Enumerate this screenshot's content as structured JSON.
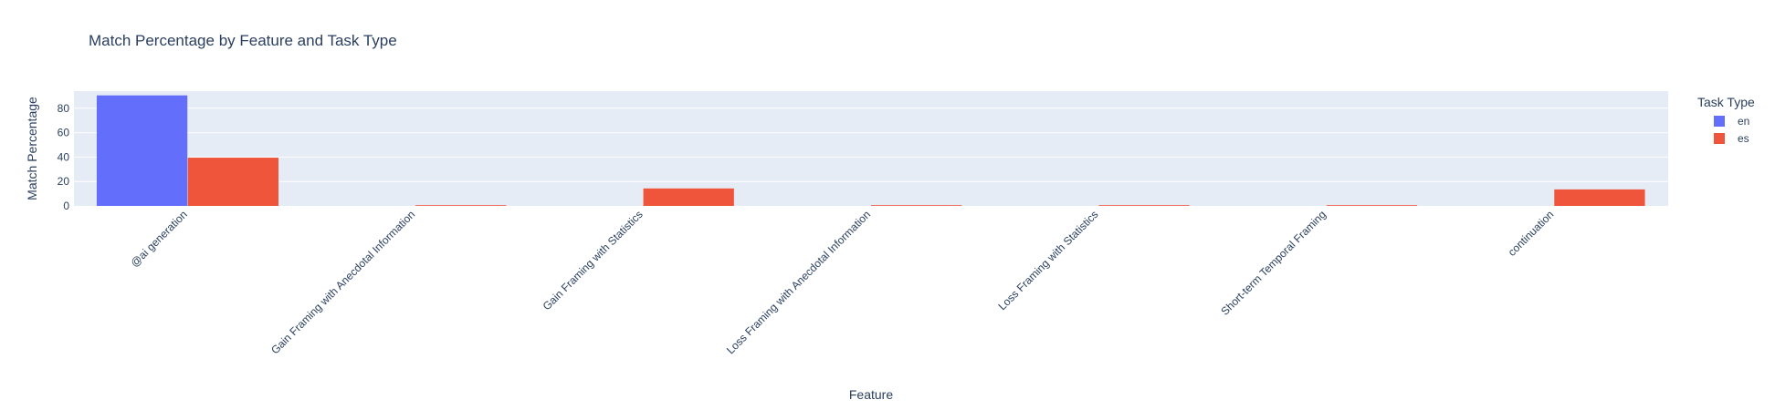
{
  "chart_data": {
    "type": "bar",
    "title": "Match Percentage by Feature and Task Type",
    "xlabel": "Feature",
    "ylabel": "Match Percentage",
    "categories": [
      "@ai generation",
      "Gain Framing with Anecdotal Information",
      "Gain Framing with Statistics",
      "Loss Framing with Anecdotal Information",
      "Loss Framing with Statistics",
      "Short-term Temporal Framing",
      "continuation"
    ],
    "series": [
      {
        "name": "en",
        "color": "#636efa",
        "values": [
          90.5,
          null,
          null,
          null,
          null,
          null,
          null
        ]
      },
      {
        "name": "es",
        "color": "#ef553b",
        "values": [
          39.5,
          0.3,
          14.3,
          0.3,
          0.3,
          0.3,
          13.5
        ]
      }
    ],
    "ylim": [
      0,
      94
    ],
    "yticks": [
      0,
      20,
      40,
      60,
      80
    ],
    "grid": true,
    "legend": {
      "title": "Task Type",
      "position": "top-right"
    },
    "colors": {
      "plot_bg": "#e5ecf6",
      "grid": "#ffffff",
      "text": "#2a3f5f"
    }
  }
}
